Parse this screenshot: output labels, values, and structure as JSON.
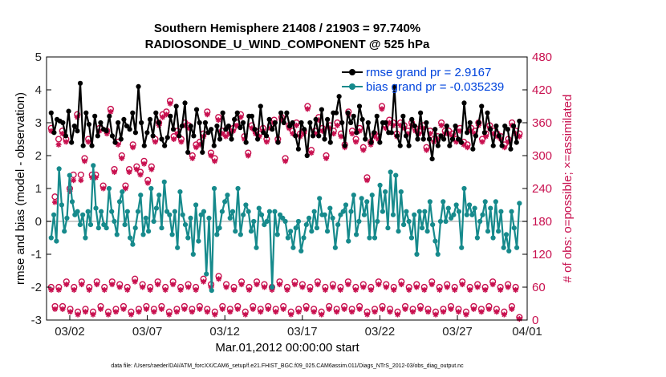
{
  "chart_data": {
    "type": "line",
    "title": "Southern Hemisphere 21408 / 21903 = 97.740%",
    "subtitle": "RADIOSONDE_U_WIND_COMPONENT @ 525 hPa",
    "xlabel": "Mar.01,2012 00:00:00 start",
    "ylabel": "rmse and bias (model - observation)",
    "ylabel_right": "# of obs: o=possible; ×=assimilated",
    "ylim": [
      -3,
      5
    ],
    "ylim_right": [
      0,
      480
    ],
    "xlim": [
      0.5,
      31.5
    ],
    "yticks": [
      "-3",
      "-2",
      "-1",
      "0",
      "1",
      "2",
      "3",
      "4",
      "5"
    ],
    "yticks_right": [
      "0",
      "60",
      "120",
      "180",
      "240",
      "300",
      "360",
      "420",
      "480"
    ],
    "xticks": [
      {
        "x": 2,
        "label": "03/02"
      },
      {
        "x": 7,
        "label": "03/07"
      },
      {
        "x": 12,
        "label": "03/12"
      },
      {
        "x": 17,
        "label": "03/17"
      },
      {
        "x": 22,
        "label": "03/22"
      },
      {
        "x": 27,
        "label": "03/27"
      },
      {
        "x": 31.5,
        "label": "04/01"
      }
    ],
    "footnote": "data file: /Users/raeder/DAI/ATM_forcXX/CAM6_setup/f.e21.FHIST_BGC.f09_025.CAM6assim.011/Diags_NTrS_2012-03/obs_diag_output.nc",
    "series": [
      {
        "name": "rmse grand pr = 2.9167",
        "color": "#000000",
        "values": [
          3.3,
          2.7,
          3.1,
          3.05,
          3.0,
          2.6,
          3.35,
          2.4,
          2.9,
          2.75,
          4.2,
          2.3,
          3.3,
          2.95,
          2.3,
          3.2,
          2.6,
          3.0,
          2.8,
          2.75,
          3.2,
          2.6,
          2.4,
          3.0,
          2.5,
          3.1,
          2.9,
          2.8,
          3.3,
          2.7,
          4.1,
          3.0,
          2.3,
          2.7,
          3.1,
          2.6,
          3.3,
          3.0,
          2.5,
          2.3,
          2.55,
          3.2,
          2.8,
          3.5,
          2.6,
          2.9,
          3.6,
          2.1,
          2.9,
          2.6,
          3.4,
          3.0,
          2.1,
          3.0,
          2.7,
          2.8,
          2.3,
          2.9,
          2.5,
          3.3,
          2.8,
          2.9,
          2.5,
          3.1,
          3.3,
          2.85,
          3.0,
          2.4,
          3.2,
          3.2,
          2.8,
          2.5,
          3.5,
          2.7,
          2.6,
          3.1,
          2.8,
          3.0,
          2.4,
          3.3,
          3.0,
          3.3,
          2.9,
          3.0,
          2.6,
          2.2,
          3.0,
          2.8,
          2.0,
          3.0,
          2.6,
          3.1,
          2.6,
          3.4,
          2.5,
          3.1,
          2.4,
          3.3,
          3.3,
          3.8,
          3.0,
          2.3,
          3.3,
          3.0,
          3.2,
          2.7,
          3.5,
          3.1,
          2.5,
          3.0,
          2.4,
          2.7,
          3.2,
          2.4,
          3.0,
          3.0,
          2.7,
          2.7,
          4.1,
          2.6,
          2.3,
          3.2,
          2.6,
          2.3,
          3.1,
          2.9,
          2.5,
          3.3,
          2.5,
          3.0,
          2.5,
          1.9,
          2.8,
          2.3,
          2.6,
          2.5,
          2.9,
          2.3,
          2.5,
          2.9,
          2.5,
          2.4,
          3.6,
          2.7,
          3.0,
          2.2,
          2.6,
          3.0,
          3.5,
          2.7,
          3.3,
          2.8,
          2.3,
          2.9,
          2.6,
          2.3,
          2.9,
          2.8,
          2.2,
          2.9,
          2.4,
          3.05
        ]
      },
      {
        "name": "bias grand pr = -0.035239",
        "color": "#168a8c",
        "values": [
          -0.5,
          0.2,
          -0.6,
          1.6,
          0.5,
          -0.3,
          0.1,
          1.4,
          0.6,
          0.2,
          0.3,
          -0.1,
          0.2,
          -0.5,
          0.3,
          -0.1,
          1.7,
          0.4,
          -0.2,
          0.3,
          -0.1,
          -0.2,
          1.0,
          0.3,
          0.0,
          -0.4,
          0.6,
          0.9,
          -0.1,
          0.3,
          -0.5,
          -0.7,
          -0.2,
          0.3,
          0.8,
          -0.4,
          0.1,
          -0.3,
          1.0,
          0.0,
          0.4,
          0.8,
          -0.2,
          1.2,
          0.3,
          0.2,
          -0.4,
          0.3,
          -0.8,
          0.9,
          0.2,
          -0.1,
          -0.5,
          0.1,
          -1.0,
          0.5,
          -0.6,
          0.2,
          0.3,
          -1.6,
          0.1,
          -2.1,
          1.0,
          -0.4,
          -0.2,
          0.3,
          0.6,
          0.8,
          0.1,
          0.3,
          -0.3,
          1.0,
          -0.4,
          0.2,
          0.5,
          0.3,
          -0.3,
          0.0,
          -0.8,
          0.4,
          0.2,
          -0.1,
          0.0,
          0.3,
          -2.0,
          0.3,
          -0.4,
          0.2,
          0.1,
          0.0,
          -0.5,
          -0.3,
          -0.8,
          -0.2,
          0.0,
          -0.9,
          -0.5,
          -0.1,
          0.1,
          -0.3,
          0.3,
          -0.2,
          0.7,
          0.2,
          0.2,
          -0.3,
          0.4,
          0.1,
          -0.8,
          -0.1,
          0.2,
          0.3,
          0.5,
          -0.6,
          0.3,
          0.8,
          -0.4,
          0.0,
          0.7,
          0.2,
          0.6,
          -0.5,
          0.8,
          -0.5,
          0.0,
          1.1,
          0.3,
          0.9,
          -0.2,
          1.5,
          0.2,
          1.4,
          -0.3,
          0.9,
          -0.1,
          0.3,
          0.0,
          -0.5,
          0.2,
          -1.0,
          0.3,
          -0.2,
          0.3,
          -0.3,
          0.6,
          -0.1,
          -0.6,
          -1.0,
          0.0,
          0.6,
          0.0,
          0.4,
          0.1,
          0.2,
          0.5,
          0.3,
          -0.8,
          1.0,
          0.2,
          0.5,
          0.2,
          0.4,
          -0.5,
          0.0,
          0.2,
          0.6,
          -0.3,
          0.4,
          -0.5,
          0.6,
          -0.3,
          0.3,
          -0.8,
          -0.4,
          -0.9,
          0.3,
          -0.2,
          -0.8,
          0.55
        ]
      }
    ],
    "obs_possible_upper": [
      350,
      225,
      330,
      345,
      330,
      240,
      265,
      375,
      265,
      295,
      330,
      265,
      265,
      350,
      245,
      345,
      385,
      275,
      325,
      300,
      245,
      275,
      320,
      280,
      270,
      290,
      255,
      280,
      330,
      360,
      375,
      380,
      400,
      335,
      345,
      330,
      360,
      355,
      300,
      320,
      325,
      340,
      380,
      305,
      295,
      370,
      345,
      340,
      345,
      350,
      360,
      375,
      335,
      305,
      355,
      345,
      340,
      350,
      330,
      355,
      365,
      330,
      370,
      295,
      355,
      345,
      360,
      340,
      345,
      390,
      310,
      345,
      370,
      350,
      300,
      355,
      345,
      360,
      340,
      320,
      380,
      345,
      330,
      350,
      315,
      260,
      325,
      340,
      335,
      390,
      355,
      365,
      360,
      340,
      360,
      355,
      345,
      360,
      350,
      345,
      355,
      315,
      345,
      330,
      335,
      360,
      345,
      345,
      340,
      330,
      350,
      325,
      320,
      350,
      345,
      360,
      330,
      340,
      355,
      345,
      340,
      335,
      320,
      330,
      360,
      345,
      340
    ],
    "obs_assimilated_upper": [
      345,
      215,
      320,
      340,
      325,
      235,
      255,
      370,
      255,
      290,
      325,
      260,
      260,
      345,
      240,
      340,
      380,
      270,
      320,
      295,
      240,
      270,
      315,
      275,
      265,
      285,
      250,
      275,
      325,
      355,
      370,
      375,
      395,
      330,
      340,
      325,
      355,
      350,
      295,
      315,
      320,
      335,
      375,
      300,
      290,
      365,
      340,
      335,
      340,
      345,
      355,
      370,
      330,
      300,
      350,
      340,
      335,
      345,
      325,
      350,
      360,
      325,
      365,
      290,
      350,
      340,
      355,
      335,
      340,
      385,
      305,
      340,
      365,
      345,
      295,
      350,
      340,
      355,
      335,
      315,
      375,
      340,
      325,
      345,
      310,
      255,
      320,
      335,
      330,
      385,
      350,
      360,
      355,
      335,
      355,
      350,
      340,
      355,
      345,
      340,
      350,
      310,
      340,
      325,
      330,
      355,
      340,
      340,
      335,
      325,
      345,
      320,
      315,
      345,
      340,
      355,
      325,
      335,
      350,
      340,
      335,
      330,
      315,
      325,
      355,
      340,
      335
    ],
    "obs_possible_lower": [
      60,
      25,
      60,
      25,
      70,
      20,
      60,
      15,
      70,
      20,
      60,
      15,
      70,
      25,
      60,
      15,
      70,
      20,
      65,
      25,
      60,
      15,
      75,
      20,
      65,
      25,
      60,
      20,
      70,
      25,
      60,
      15,
      70,
      20,
      60,
      25,
      65,
      20,
      60,
      25,
      75,
      20,
      65,
      15,
      80,
      25,
      65,
      20,
      60,
      25,
      70,
      15,
      60,
      25,
      70,
      20,
      65,
      25,
      60,
      20,
      70,
      25,
      60,
      15,
      70,
      20,
      65,
      25,
      60,
      20,
      70,
      15,
      60,
      25,
      65,
      20,
      60,
      25,
      70,
      20,
      60,
      25,
      65,
      15,
      60,
      20,
      70,
      25,
      65,
      20,
      60,
      15,
      70,
      25,
      60,
      20,
      65,
      25,
      60,
      20,
      70,
      15,
      60,
      20,
      65,
      25,
      60,
      20,
      70,
      15,
      60,
      25,
      65,
      20,
      60,
      25,
      70,
      20,
      60,
      15,
      65,
      25,
      60,
      5
    ],
    "obs_assimilated_lower": [
      55,
      20,
      55,
      20,
      65,
      15,
      55,
      10,
      65,
      15,
      55,
      10,
      65,
      20,
      55,
      10,
      65,
      15,
      60,
      20,
      55,
      10,
      70,
      15,
      60,
      20,
      55,
      15,
      65,
      20,
      55,
      10,
      65,
      15,
      55,
      20,
      60,
      15,
      55,
      20,
      70,
      15,
      60,
      10,
      75,
      20,
      60,
      15,
      55,
      20,
      65,
      10,
      55,
      20,
      65,
      15,
      60,
      20,
      55,
      15,
      65,
      20,
      55,
      10,
      65,
      15,
      60,
      20,
      55,
      15,
      65,
      10,
      55,
      20,
      60,
      15,
      55,
      20,
      65,
      15,
      55,
      20,
      60,
      10,
      55,
      15,
      65,
      20,
      60,
      15,
      55,
      10,
      65,
      20,
      55,
      15,
      60,
      20,
      55,
      15,
      65,
      10,
      55,
      15,
      60,
      20,
      55,
      15,
      65,
      10,
      55,
      20,
      60,
      15,
      55,
      20,
      65,
      15,
      55,
      10,
      60,
      20,
      55,
      2
    ],
    "obs_color": "#c8104f",
    "zero_line": true,
    "grid": false,
    "legend": "top-right"
  }
}
